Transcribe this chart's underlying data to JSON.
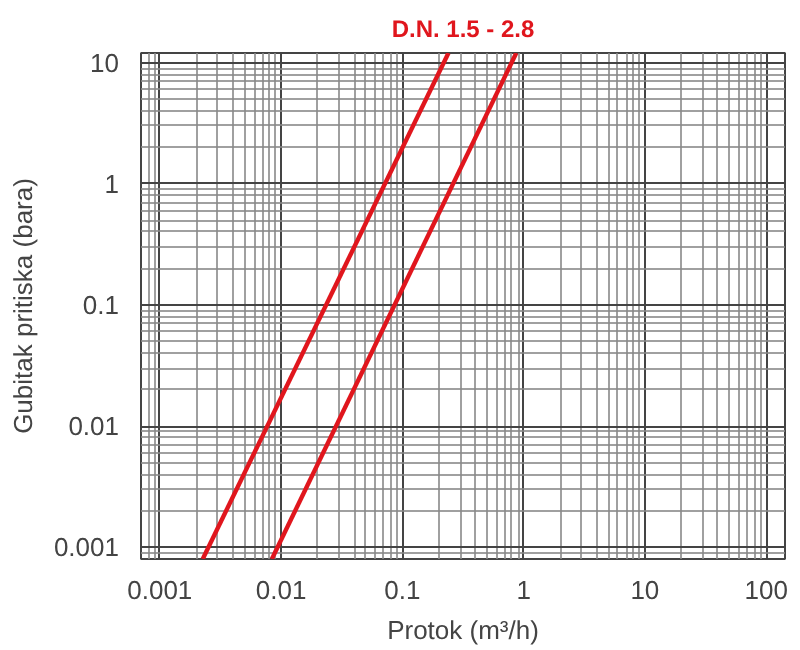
{
  "chart_data": {
    "type": "line",
    "xlabel": "Protok (m³/h)",
    "ylabel": "Gubitak pritiska (bara)",
    "log": "xy",
    "grid": true,
    "xlim": [
      0.0007,
      143
    ],
    "ylim": [
      0.0008,
      12
    ],
    "xticks": [
      0.001,
      0.01,
      0.1,
      1,
      10,
      100
    ],
    "yticks": [
      0.001,
      0.01,
      0.1,
      1,
      10
    ],
    "series": [
      {
        "color": "#e0161d",
        "x": [
          0.00226,
          0.24
        ],
        "values": [
          0.0008,
          12
        ]
      },
      {
        "color": "#e0161d",
        "x": [
          0.0084,
          0.87
        ],
        "values": [
          0.0008,
          12
        ]
      }
    ],
    "annotations": [
      "D.N. 1.5 - 2.8"
    ]
  }
}
